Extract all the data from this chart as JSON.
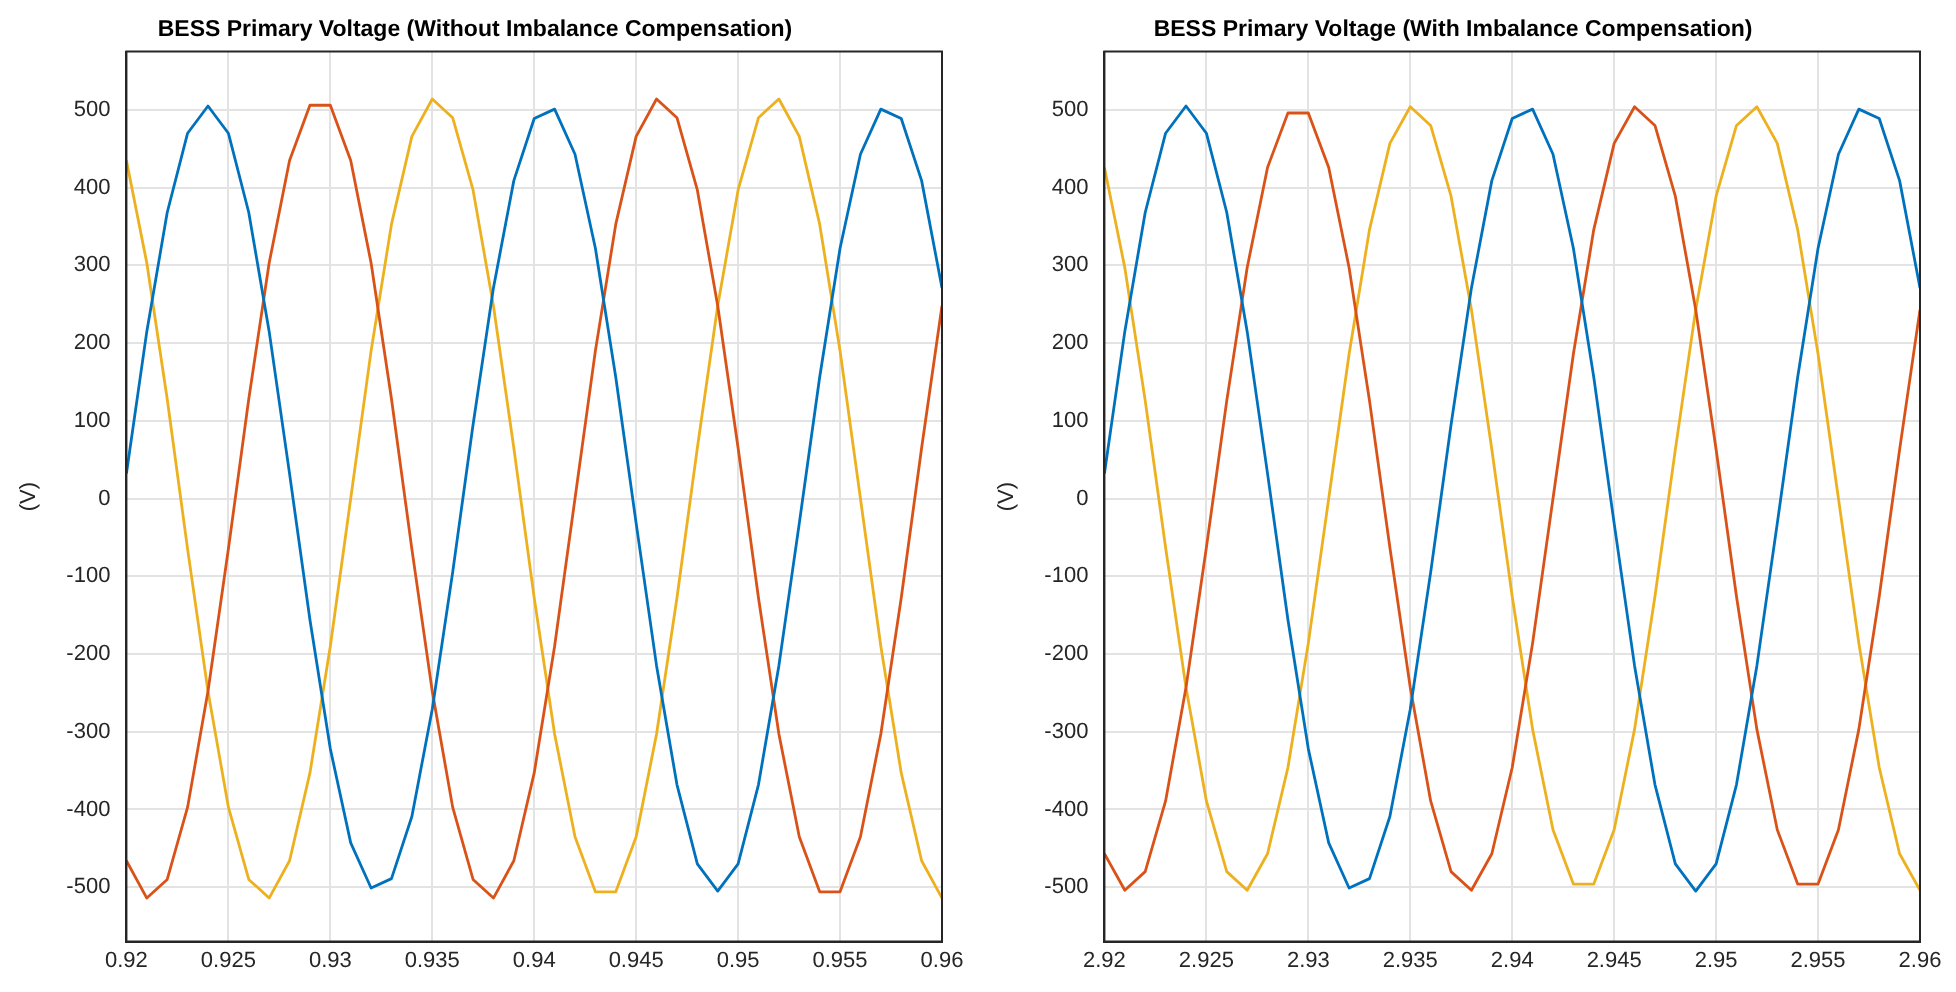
{
  "chart_data": [
    {
      "type": "line",
      "title": "BESS Primary Voltage (Without Imbalance Compensation)",
      "ylabel": "(V)",
      "x": [
        0.92,
        0.921,
        0.922,
        0.923,
        0.924,
        0.925,
        0.926,
        0.927,
        0.928,
        0.929,
        0.93,
        0.931,
        0.932,
        0.933,
        0.934,
        0.935,
        0.936,
        0.937,
        0.938,
        0.939,
        0.94,
        0.941,
        0.942,
        0.943,
        0.944,
        0.945,
        0.946,
        0.947,
        0.948,
        0.949,
        0.95,
        0.951,
        0.952,
        0.953,
        0.954,
        0.955,
        0.956,
        0.957,
        0.958,
        0.959,
        0.96
      ],
      "series": [
        {
          "color": "#0072bd",
          "values": [
            32,
            215,
            368,
            470,
            505,
            470,
            368,
            215,
            32,
            -156,
            -322,
            -443,
            -501,
            -489,
            -409,
            -271,
            -95,
            95,
            271,
            409,
            489,
            501,
            443,
            322,
            156,
            -32,
            -215,
            -368,
            -470,
            -505,
            -470,
            -368,
            -215,
            -32,
            156,
            322,
            443,
            501,
            489,
            409,
            271
          ]
        },
        {
          "color": "#d95319",
          "values": [
            -466,
            -514,
            -490,
            -397,
            -248,
            -65,
            128,
            303,
            435,
            506,
            506,
            435,
            303,
            128,
            -65,
            -248,
            -397,
            -490,
            -514,
            -466,
            -353,
            -190,
            0,
            190,
            353,
            466,
            514,
            490,
            397,
            248,
            65,
            -128,
            -303,
            -435,
            -506,
            -506,
            -435,
            -303,
            -128,
            65,
            248
          ]
        },
        {
          "color": "#edb120",
          "values": [
            435,
            303,
            128,
            -65,
            -248,
            -397,
            -490,
            -514,
            -466,
            -353,
            -190,
            0,
            190,
            353,
            466,
            514,
            490,
            397,
            248,
            65,
            -128,
            -303,
            -435,
            -506,
            -506,
            -435,
            -303,
            -128,
            65,
            248,
            397,
            490,
            514,
            466,
            353,
            190,
            0,
            -190,
            -353,
            -466,
            -514
          ]
        }
      ],
      "xlim": [
        0.92,
        0.96
      ],
      "xticks": [
        0.92,
        0.925,
        0.93,
        0.935,
        0.94,
        0.945,
        0.95,
        0.955,
        0.96
      ],
      "ylim": [
        -570,
        575
      ],
      "yticks": [
        -500,
        -400,
        -300,
        -200,
        -100,
        0,
        100,
        200,
        300,
        400,
        500
      ],
      "grid": true
    },
    {
      "type": "line",
      "title": "BESS Primary Voltage (With Imbalance Compensation)",
      "ylabel": "(V)",
      "x": [
        2.92,
        2.921,
        2.922,
        2.923,
        2.924,
        2.925,
        2.926,
        2.927,
        2.928,
        2.929,
        2.93,
        2.931,
        2.932,
        2.933,
        2.934,
        2.935,
        2.936,
        2.937,
        2.938,
        2.939,
        2.94,
        2.941,
        2.942,
        2.943,
        2.944,
        2.945,
        2.946,
        2.947,
        2.948,
        2.949,
        2.95,
        2.951,
        2.952,
        2.953,
        2.954,
        2.955,
        2.956,
        2.957,
        2.958,
        2.959,
        2.96
      ],
      "series": [
        {
          "color": "#0072bd",
          "values": [
            32,
            215,
            368,
            470,
            505,
            470,
            368,
            215,
            32,
            -156,
            -322,
            -443,
            -501,
            -489,
            -409,
            -271,
            -95,
            95,
            271,
            409,
            489,
            501,
            443,
            322,
            156,
            -32,
            -215,
            -368,
            -470,
            -505,
            -470,
            -368,
            -215,
            -32,
            156,
            322,
            443,
            501,
            489,
            409,
            271
          ]
        },
        {
          "color": "#d95319",
          "values": [
            -457,
            -504,
            -480,
            -389,
            -243,
            -63,
            126,
            297,
            426,
            496,
            496,
            426,
            297,
            126,
            -63,
            -243,
            -389,
            -480,
            -504,
            -457,
            -346,
            -186,
            0,
            186,
            346,
            457,
            504,
            480,
            389,
            243,
            63,
            -126,
            -297,
            -426,
            -496,
            -496,
            -426,
            -297,
            -126,
            63,
            243
          ]
        },
        {
          "color": "#edb120",
          "values": [
            426,
            297,
            126,
            -63,
            -243,
            -389,
            -480,
            -504,
            -457,
            -346,
            -186,
            0,
            186,
            346,
            457,
            504,
            480,
            389,
            243,
            63,
            -126,
            -297,
            -426,
            -496,
            -496,
            -426,
            -297,
            -126,
            63,
            243,
            389,
            480,
            504,
            457,
            346,
            186,
            0,
            -186,
            -346,
            -457,
            -504
          ]
        }
      ],
      "xlim": [
        2.92,
        2.96
      ],
      "xticks": [
        2.92,
        2.925,
        2.93,
        2.935,
        2.94,
        2.945,
        2.95,
        2.955,
        2.96
      ],
      "ylim": [
        -570,
        575
      ],
      "yticks": [
        -500,
        -400,
        -300,
        -200,
        -100,
        0,
        100,
        200,
        300,
        400,
        500
      ],
      "grid": true
    }
  ]
}
